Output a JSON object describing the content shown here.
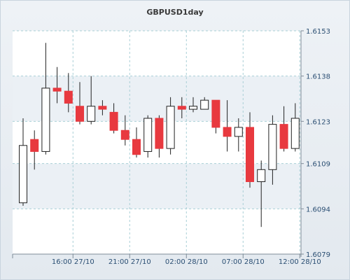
{
  "chart_data": {
    "type": "candlestick",
    "title": "GBPUSD1day",
    "ylim": [
      1.6079,
      1.6153
    ],
    "yticks": [
      "1.6153",
      "1.6138",
      "1.6123",
      "1.6109",
      "1.6094",
      "1.6079"
    ],
    "xticks": [
      {
        "label": "16:00 27/10",
        "index": 4.4
      },
      {
        "label": "21:00 27/10",
        "index": 9.4
      },
      {
        "label": "02:00 28/10",
        "index": 14.4
      },
      {
        "label": "07:00 28/10",
        "index": 19.4
      },
      {
        "label": "12:00 28/10",
        "index": 24.4
      }
    ],
    "grid": true,
    "up_color": "#ffffff",
    "down_color": "#e8393f",
    "candles": [
      {
        "open": 1.6096,
        "high": 1.6124,
        "low": 1.6095,
        "close": 1.6115
      },
      {
        "open": 1.6117,
        "high": 1.612,
        "low": 1.6107,
        "close": 1.6113
      },
      {
        "open": 1.6113,
        "high": 1.6149,
        "low": 1.6112,
        "close": 1.6134
      },
      {
        "open": 1.6134,
        "high": 1.6141,
        "low": 1.6129,
        "close": 1.6133
      },
      {
        "open": 1.6133,
        "high": 1.6139,
        "low": 1.6126,
        "close": 1.6129
      },
      {
        "open": 1.6128,
        "high": 1.6136,
        "low": 1.6122,
        "close": 1.6123
      },
      {
        "open": 1.6123,
        "high": 1.6138,
        "low": 1.6122,
        "close": 1.6128
      },
      {
        "open": 1.6128,
        "high": 1.613,
        "low": 1.6125,
        "close": 1.6127
      },
      {
        "open": 1.6126,
        "high": 1.6129,
        "low": 1.6119,
        "close": 1.612
      },
      {
        "open": 1.612,
        "high": 1.6125,
        "low": 1.6115,
        "close": 1.6117
      },
      {
        "open": 1.6117,
        "high": 1.6121,
        "low": 1.6111,
        "close": 1.6112
      },
      {
        "open": 1.6113,
        "high": 1.6125,
        "low": 1.6111,
        "close": 1.6124
      },
      {
        "open": 1.6124,
        "high": 1.6125,
        "low": 1.6111,
        "close": 1.6114
      },
      {
        "open": 1.6114,
        "high": 1.6131,
        "low": 1.6112,
        "close": 1.6128
      },
      {
        "open": 1.6128,
        "high": 1.6131,
        "low": 1.6124,
        "close": 1.6127
      },
      {
        "open": 1.6127,
        "high": 1.6131,
        "low": 1.6126,
        "close": 1.6128
      },
      {
        "open": 1.6127,
        "high": 1.6131,
        "low": 1.6127,
        "close": 1.613
      },
      {
        "open": 1.613,
        "high": 1.613,
        "low": 1.6119,
        "close": 1.6121
      },
      {
        "open": 1.6121,
        "high": 1.613,
        "low": 1.6113,
        "close": 1.6118
      },
      {
        "open": 1.6118,
        "high": 1.6124,
        "low": 1.6113,
        "close": 1.6121
      },
      {
        "open": 1.6121,
        "high": 1.6126,
        "low": 1.6101,
        "close": 1.6103
      },
      {
        "open": 1.6103,
        "high": 1.611,
        "low": 1.6088,
        "close": 1.6107
      },
      {
        "open": 1.6107,
        "high": 1.6125,
        "low": 1.6102,
        "close": 1.6122
      },
      {
        "open": 1.6122,
        "high": 1.6128,
        "low": 1.6113,
        "close": 1.6114
      },
      {
        "open": 1.6114,
        "high": 1.6129,
        "low": 1.6113,
        "close": 1.6124
      }
    ]
  }
}
